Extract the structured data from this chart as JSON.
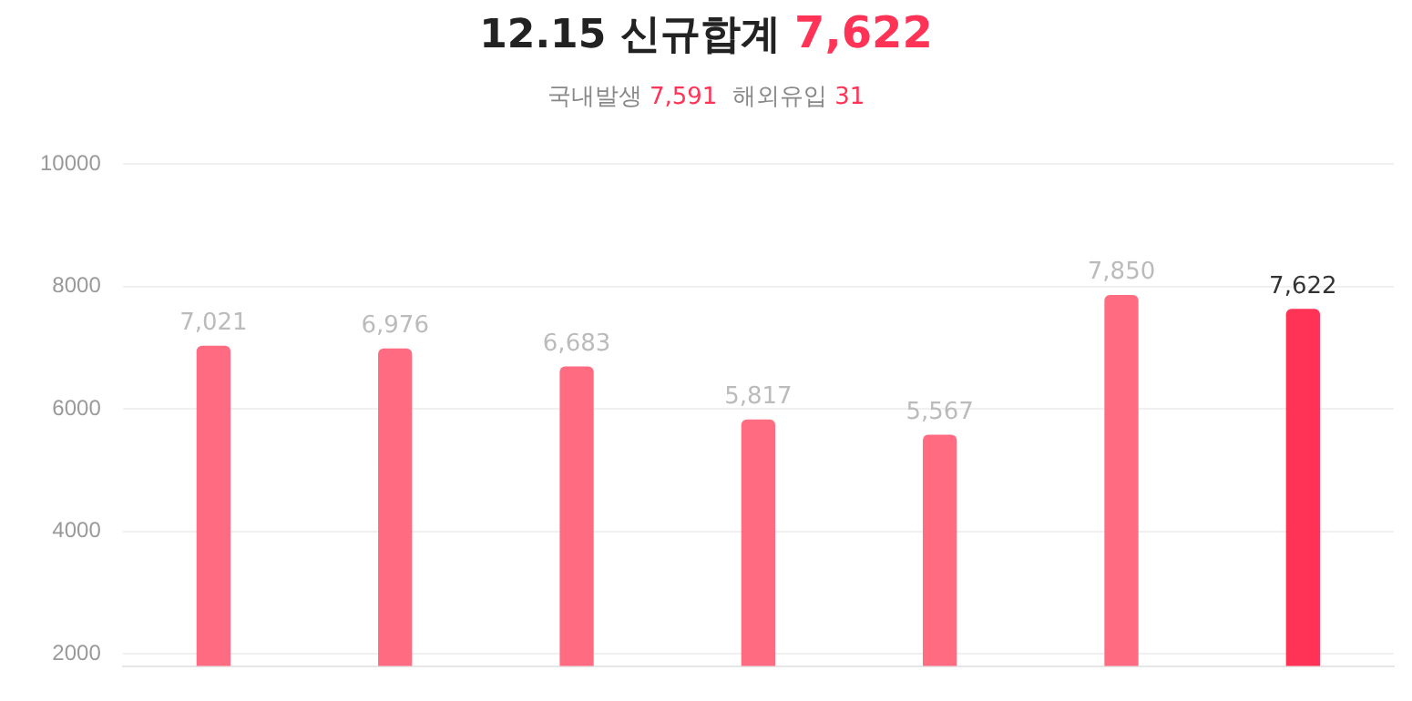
{
  "chart_data": {
    "type": "bar",
    "title": "12.15 신규합계 7,622",
    "subtitle": "국내발생 7,591  해외유입 31",
    "categories": [
      null,
      null,
      null,
      null,
      null,
      null,
      null
    ],
    "values": [
      7021,
      6976,
      6683,
      5817,
      5567,
      7850,
      7622
    ],
    "colors": [
      "#ff6b81",
      "#ff6b81",
      "#ff6b81",
      "#ff6b81",
      "#ff6b81",
      "#ff6b81",
      "#ff3355"
    ],
    "ylim": [
      1800,
      10000
    ],
    "yticks": [
      2000,
      4000,
      6000,
      8000,
      10000
    ],
    "value_labels": [
      "7,021",
      "6,976",
      "6,683",
      "5,817",
      "5,567",
      "7,850",
      "7,622"
    ],
    "grid": "y",
    "tick_labels": "y"
  }
}
